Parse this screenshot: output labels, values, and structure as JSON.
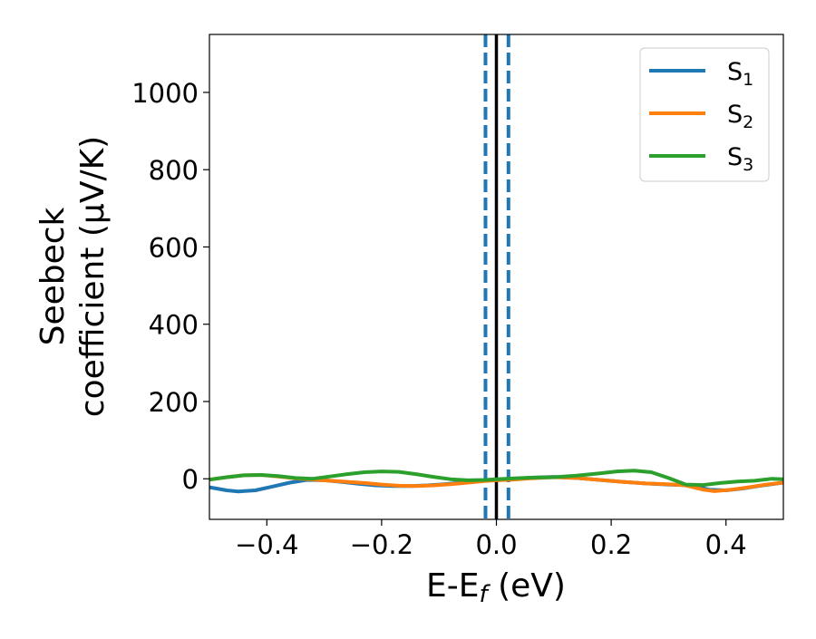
{
  "chart_data": {
    "type": "line",
    "title": "",
    "xlabel_main": "E-E",
    "xlabel_sub": "f",
    "xlabel_tail": " (eV)",
    "ylabel_line1": "Seebeck",
    "ylabel_line2": "coefficient  (μV/K)",
    "xlim": [
      -0.5,
      0.5
    ],
    "ylim": [
      -105,
      1150
    ],
    "xticks": [
      -0.4,
      -0.2,
      0.0,
      0.2,
      0.4
    ],
    "xtick_labels": [
      "−0.4",
      "−0.2",
      "0.0",
      "0.2",
      "0.4"
    ],
    "yticks": [
      0,
      200,
      400,
      600,
      800,
      1000
    ],
    "ytick_labels": [
      "0",
      "200",
      "400",
      "600",
      "800",
      "1000"
    ],
    "grid": false,
    "legend_position": "top-right",
    "vlines": [
      {
        "x": 0.0,
        "color": "#000000",
        "style": "solid"
      },
      {
        "x": -0.019,
        "color": "#1f77b4",
        "style": "dashed"
      },
      {
        "x": 0.021,
        "color": "#1f77b4",
        "style": "dashed"
      }
    ],
    "series": [
      {
        "name": "S",
        "sub": "1",
        "color": "#1f77b4",
        "x": [
          -0.5,
          -0.47,
          -0.45,
          -0.42,
          -0.39,
          -0.36,
          -0.33,
          -0.3,
          -0.27,
          -0.24,
          -0.21,
          -0.18,
          -0.15,
          -0.12,
          -0.09,
          -0.06,
          -0.03,
          0.0,
          0.03,
          0.06,
          0.1,
          0.14,
          0.18,
          0.22,
          0.26,
          0.3,
          0.34,
          0.37,
          0.4,
          0.43,
          0.46,
          0.5
        ],
        "y": [
          -22,
          -30,
          -33,
          -30,
          -20,
          -10,
          -3,
          -4,
          -8,
          -13,
          -17,
          -19,
          -19,
          -17,
          -14,
          -10,
          -6,
          -2,
          0,
          3,
          5,
          2,
          -3,
          -8,
          -12,
          -15,
          -17,
          -28,
          -30,
          -25,
          -18,
          -10
        ]
      },
      {
        "name": "S",
        "sub": "2",
        "color": "#ff7f0e",
        "x": [
          -0.5,
          -0.47,
          -0.44,
          -0.41,
          -0.38,
          -0.35,
          -0.32,
          -0.29,
          -0.26,
          -0.23,
          -0.2,
          -0.17,
          -0.14,
          -0.11,
          -0.08,
          -0.05,
          -0.02,
          0.0,
          0.03,
          0.06,
          0.1,
          0.14,
          0.18,
          0.22,
          0.26,
          0.3,
          0.33,
          0.36,
          0.38,
          0.41,
          0.44,
          0.47,
          0.5
        ],
        "y": [
          -2,
          4,
          9,
          10,
          6,
          1,
          -2,
          -5,
          -8,
          -11,
          -15,
          -18,
          -19,
          -17,
          -14,
          -10,
          -6,
          -4,
          -2,
          1,
          4,
          2,
          -3,
          -8,
          -12,
          -14,
          -17,
          -28,
          -32,
          -28,
          -22,
          -15,
          -10
        ]
      },
      {
        "name": "S",
        "sub": "3",
        "color": "#2ca02c",
        "x": [
          -0.5,
          -0.47,
          -0.44,
          -0.41,
          -0.38,
          -0.35,
          -0.32,
          -0.29,
          -0.26,
          -0.23,
          -0.2,
          -0.17,
          -0.14,
          -0.11,
          -0.08,
          -0.05,
          -0.02,
          0.0,
          0.03,
          0.06,
          0.1,
          0.14,
          0.18,
          0.21,
          0.24,
          0.27,
          0.3,
          0.33,
          0.36,
          0.39,
          0.42,
          0.45,
          0.48,
          0.5
        ],
        "y": [
          -2,
          4,
          9,
          10,
          7,
          2,
          0,
          6,
          12,
          17,
          19,
          18,
          12,
          5,
          -1,
          -4,
          -3,
          -1,
          1,
          3,
          4,
          8,
          14,
          19,
          21,
          17,
          2,
          -15,
          -16,
          -11,
          -7,
          -5,
          0,
          -1
        ]
      }
    ]
  }
}
